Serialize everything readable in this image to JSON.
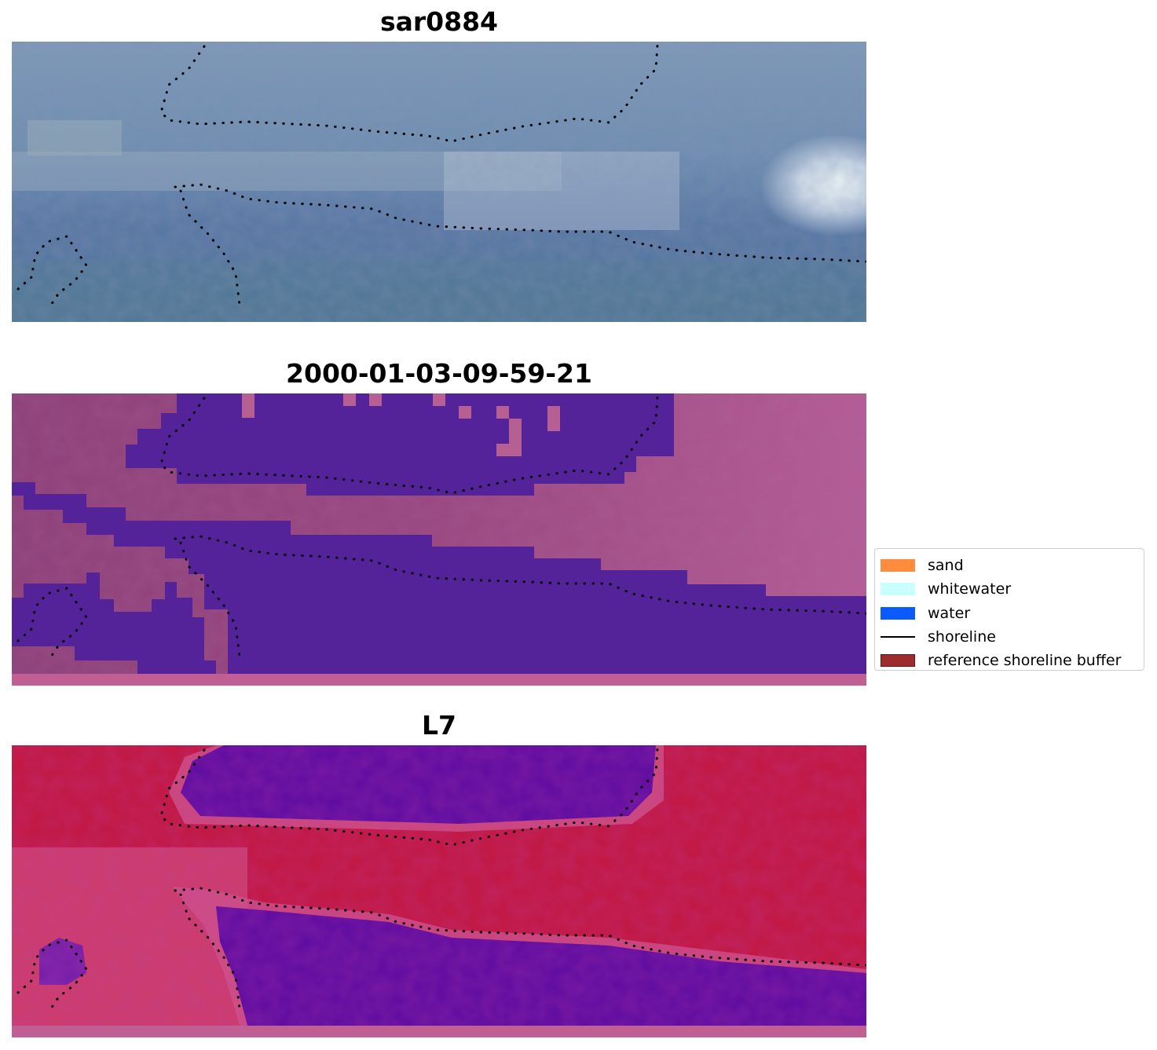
{
  "panels": [
    {
      "title": "sar0884"
    },
    {
      "title": "2000-01-03-09-59-21"
    },
    {
      "title": "L7"
    }
  ],
  "legend": {
    "items": [
      {
        "label": "sand",
        "color": "#ff8c3d",
        "kind": "patch"
      },
      {
        "label": "whitewater",
        "color": "#c8ffff",
        "kind": "patch"
      },
      {
        "label": "water",
        "color": "#0a5aff",
        "kind": "patch"
      },
      {
        "label": "shoreline",
        "color": "#000000",
        "kind": "line"
      },
      {
        "label": "reference shoreline buffer",
        "color": "#9b2d2d",
        "kind": "patch"
      }
    ]
  },
  "colors": {
    "rgb_base": "#5f7ea1",
    "classified_water": "#54239a",
    "classified_land": "#9a4a87",
    "mndwi_land": "#c2163e",
    "mndwi_water": "#5c0aa0",
    "buffer_strip": "#c05f93"
  }
}
